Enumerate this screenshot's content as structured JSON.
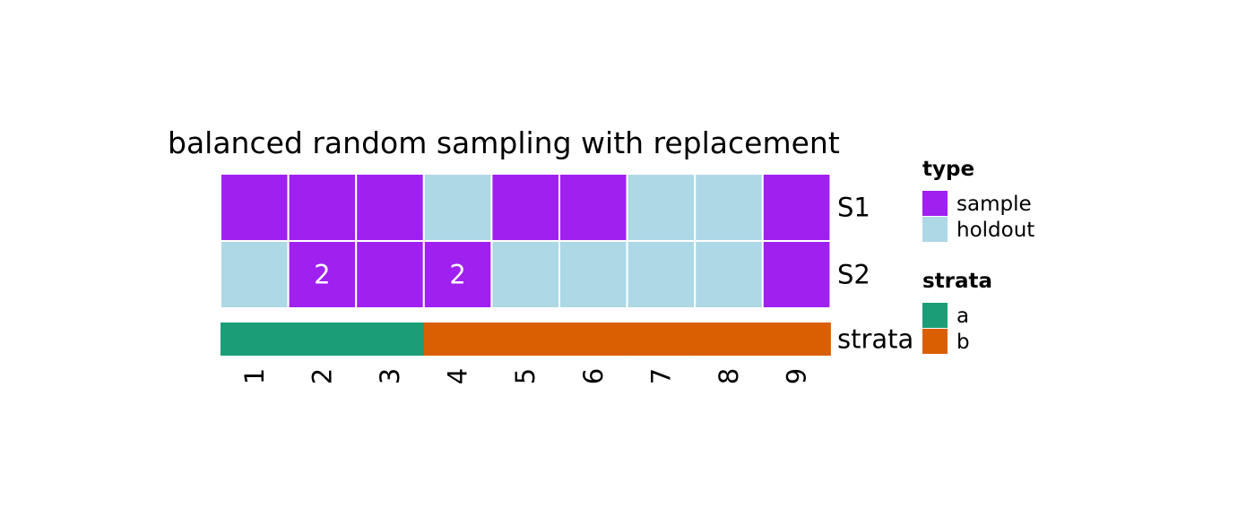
{
  "chart_data": {
    "type": "heatmap",
    "title": "balanced random sampling with replacement",
    "x": [
      "1",
      "2",
      "3",
      "4",
      "5",
      "6",
      "7",
      "8",
      "9"
    ],
    "rows": [
      {
        "name": "S1",
        "types": [
          "sample",
          "sample",
          "sample",
          "holdout",
          "sample",
          "sample",
          "holdout",
          "holdout",
          "sample"
        ],
        "counts": [
          1,
          1,
          1,
          0,
          1,
          1,
          0,
          0,
          1
        ]
      },
      {
        "name": "S2",
        "types": [
          "holdout",
          "sample",
          "sample",
          "sample",
          "holdout",
          "holdout",
          "holdout",
          "holdout",
          "sample"
        ],
        "counts": [
          0,
          2,
          1,
          2,
          0,
          0,
          0,
          0,
          1
        ]
      }
    ],
    "strata_row": {
      "name": "strata",
      "values": [
        "a",
        "a",
        "a",
        "b",
        "b",
        "b",
        "b",
        "b",
        "b"
      ]
    },
    "legends": [
      {
        "title": "type",
        "entries": [
          {
            "label": "sample",
            "color": "#A020F0"
          },
          {
            "label": "holdout",
            "color": "#ADD8E6"
          }
        ]
      },
      {
        "title": "strata",
        "entries": [
          {
            "label": "a",
            "color": "#1B9E77"
          },
          {
            "label": "b",
            "color": "#D95F02"
          }
        ]
      }
    ],
    "legend_position": "right"
  }
}
